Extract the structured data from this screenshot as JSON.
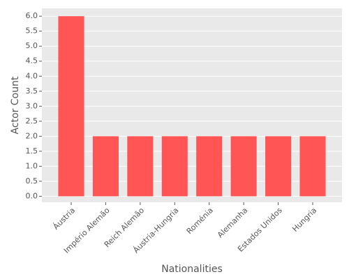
{
  "chart_data": {
    "type": "bar",
    "x_label": "Nationalities",
    "y_label": "Actor Count",
    "categories": [
      "Áustria",
      "Império Alemão",
      "Reich Alemão",
      "Áustria-Hungria",
      "Roménia",
      "Alemanha",
      "Estados Unidos",
      "Hungria"
    ],
    "values": [
      6,
      2,
      2,
      2,
      2,
      2,
      2,
      2
    ],
    "color": "#ff5555",
    "ylim": [
      -0.2,
      6.26
    ],
    "yticks": [
      {
        "value": 0,
        "label": "0.0"
      },
      0.5,
      {
        "value": 1,
        "label": "1.0"
      },
      1.5,
      {
        "value": 2,
        "label": "2.0"
      },
      2.5,
      {
        "value": 3,
        "label": "3.0"
      },
      3.5,
      {
        "value": 4,
        "label": "4.0"
      },
      4.5,
      {
        "value": 5,
        "label": "5.0"
      },
      5.5,
      {
        "value": 6,
        "label": "6.0"
      }
    ],
    "grid": true
  }
}
